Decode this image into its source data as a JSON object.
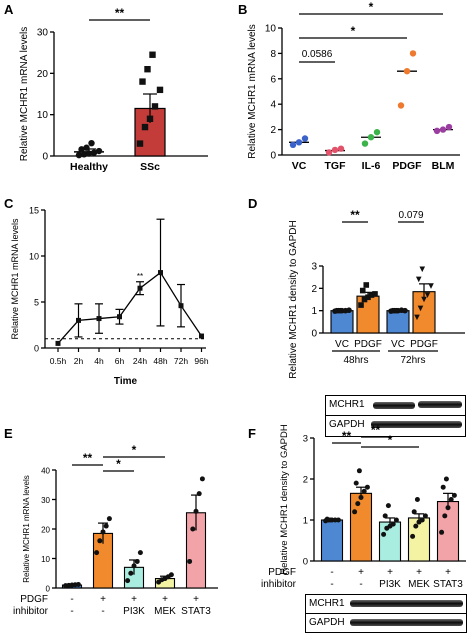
{
  "panels": {
    "A": {
      "label": "A"
    },
    "B": {
      "label": "B"
    },
    "C": {
      "label": "C"
    },
    "D": {
      "label": "D"
    },
    "E": {
      "label": "E"
    },
    "F": {
      "label": "F"
    }
  },
  "blots": {
    "D": {
      "rows": [
        "MCHR1",
        "GAPDH"
      ]
    },
    "F": {
      "rows": [
        "MCHR1",
        "GAPDH"
      ]
    }
  },
  "chart_data": [
    {
      "id": "A",
      "type": "bar",
      "ylabel": "Relative MCHR1 mRNA levels",
      "ylim": [
        0,
        30
      ],
      "yticks": [
        0,
        10,
        20,
        30
      ],
      "categories": [
        "Healthy",
        "SSc"
      ],
      "values": [
        1.0,
        11.5
      ],
      "errors": [
        0.7,
        3.5
      ],
      "points": [
        [
          0.2,
          0.4,
          0.6,
          0.8,
          1.2,
          1.6,
          2.0,
          3.1
        ],
        [
          3.0,
          7.0,
          9.0,
          12.0,
          16.0,
          18.0,
          21.0,
          24.5
        ]
      ],
      "colors": [
        "#ffffff",
        "#c43c39"
      ],
      "marker": [
        "circle",
        "square"
      ],
      "significance": [
        {
          "from": 0,
          "to": 1,
          "text": "**"
        }
      ]
    },
    {
      "id": "B",
      "type": "scatter",
      "ylabel": "Relative MCHR1 mRNA levels",
      "ylim": [
        0,
        10
      ],
      "yticks": [
        0,
        2,
        4,
        6,
        8,
        10
      ],
      "categories": [
        "VC",
        "TGF",
        "IL-6",
        "PDGF",
        "BLM"
      ],
      "points": [
        [
          0.8,
          1.0,
          1.3
        ],
        [
          0.2,
          0.4,
          0.5
        ],
        [
          0.9,
          1.4,
          1.8
        ],
        [
          3.9,
          6.6,
          8.0
        ],
        [
          1.9,
          2.0,
          2.2
        ]
      ],
      "means": [
        1.0,
        0.35,
        1.4,
        6.6,
        2.0
      ],
      "colors": [
        "#3a62c9",
        "#e0536a",
        "#3bb24a",
        "#ee7a2f",
        "#9a3ea0"
      ],
      "significance": [
        {
          "from": 0,
          "to": 4,
          "text": "*"
        },
        {
          "from": 0,
          "to": 3,
          "text": "*"
        },
        {
          "from": 0,
          "to": 1,
          "text": "0.0586"
        }
      ]
    },
    {
      "id": "C",
      "type": "line",
      "ylabel": "Relative MCHR1 mRNA levels",
      "xlabel": "Time",
      "ylim": [
        0,
        15
      ],
      "yticks": [
        0,
        5,
        10,
        15
      ],
      "categories": [
        "0.5h",
        "2h",
        "4h",
        "6h",
        "24h",
        "48h",
        "72h",
        "96h"
      ],
      "values": [
        0.5,
        3.0,
        3.2,
        3.4,
        6.5,
        8.2,
        4.6,
        1.3
      ],
      "errors": [
        0,
        1.8,
        1.6,
        0.8,
        0.7,
        5.8,
        2.3,
        0
      ],
      "baseline": 1,
      "annotation": {
        "index": 4,
        "text": "**"
      }
    },
    {
      "id": "D",
      "type": "bar",
      "ylabel": "Relative MCHR1 density to GAPDH",
      "ylim": [
        0,
        3
      ],
      "yticks": [
        0,
        1,
        2,
        3
      ],
      "categories": [
        "VC",
        "PDGF",
        "VC",
        "PDGF"
      ],
      "groups": [
        "48hrs",
        "72hrs"
      ],
      "values": [
        1.0,
        1.65,
        1.0,
        1.85
      ],
      "errors": [
        0.02,
        0.17,
        0.02,
        0.35
      ],
      "points": [
        [
          0.98,
          1.0,
          1.0,
          1.0,
          1.02,
          1.0,
          1.0
        ],
        [
          1.25,
          1.5,
          1.6,
          1.7,
          1.75,
          1.9,
          2.15
        ],
        [
          0.98,
          1.0,
          1.0,
          1.02,
          1.0,
          1.0,
          1.0
        ],
        [
          0.7,
          1.1,
          1.5,
          1.7,
          2.1,
          2.4,
          2.85
        ]
      ],
      "colors": [
        "#4f88d2",
        "#f08a2c",
        "#4f88d2",
        "#f08a2c"
      ],
      "marker": [
        "circle",
        "square",
        "circle",
        "triangle-down"
      ],
      "significance": [
        {
          "from": 0,
          "to": 1,
          "text": "**"
        },
        {
          "from": 2,
          "to": 3,
          "text": "0.079"
        }
      ]
    },
    {
      "id": "E",
      "type": "bar",
      "ylabel": "Relative MCHR1 mRNA levels",
      "ylim": [
        0,
        40
      ],
      "yticks": [
        0,
        10,
        20,
        30,
        40
      ],
      "rows": [
        {
          "label": "PDGF",
          "values": [
            "-",
            "+",
            "+",
            "+",
            "+"
          ]
        },
        {
          "label": "inhibitor",
          "values": [
            "-",
            "-",
            "PI3K",
            "MEK",
            "STAT3"
          ]
        }
      ],
      "values": [
        1.0,
        18.5,
        7.0,
        3.2,
        25.5
      ],
      "errors": [
        0.3,
        3.5,
        2.5,
        0.8,
        6.0
      ],
      "points": [
        [
          0.8,
          0.9,
          1.0,
          1.1,
          1.2
        ],
        [
          12.0,
          16.0,
          19.0,
          21.0,
          23.5
        ],
        [
          2.5,
          5.0,
          7.5,
          9.0,
          12.0
        ],
        [
          2.0,
          2.8,
          3.2,
          3.8,
          4.5
        ],
        [
          9.0,
          20.0,
          26.0,
          32.0,
          37.0
        ]
      ],
      "colors": [
        "#4f88d2",
        "#f08a2c",
        "#a9ece0",
        "#f3f3a3",
        "#f2a3a8"
      ],
      "significance": [
        {
          "from": 0,
          "to": 1,
          "text": "**"
        },
        {
          "from": 1,
          "to": 2,
          "text": "*"
        },
        {
          "from": 1,
          "to": 3,
          "text": "*"
        }
      ]
    },
    {
      "id": "F",
      "type": "bar",
      "ylabel": "Relative MCHR1 density to GAPDH",
      "ylim": [
        0,
        3
      ],
      "yticks": [
        0,
        1,
        2,
        3
      ],
      "rows": [
        {
          "label": "PDGF",
          "values": [
            "-",
            "+",
            "+",
            "+",
            "+"
          ]
        },
        {
          "label": "inhibitor",
          "values": [
            "-",
            "-",
            "PI3K",
            "MEK",
            "STAT3"
          ]
        }
      ],
      "values": [
        1.0,
        1.65,
        0.95,
        1.05,
        1.45
      ],
      "errors": [
        0.02,
        0.15,
        0.1,
        0.1,
        0.2
      ],
      "points": [
        [
          0.98,
          1.0,
          1.0,
          1.0,
          1.0,
          1.02,
          1.0
        ],
        [
          1.2,
          1.4,
          1.55,
          1.7,
          1.8,
          1.9,
          2.2
        ],
        [
          0.65,
          0.8,
          0.85,
          0.9,
          1.0,
          1.1,
          1.35
        ],
        [
          0.6,
          0.85,
          0.95,
          1.0,
          1.1,
          1.2,
          1.5
        ],
        [
          0.7,
          1.1,
          1.3,
          1.5,
          1.6,
          1.8,
          2.0
        ]
      ],
      "colors": [
        "#4f88d2",
        "#f08a2c",
        "#a9ece0",
        "#f3f3a3",
        "#f2a3a8"
      ],
      "significance": [
        {
          "from": 0,
          "to": 1,
          "text": "**"
        },
        {
          "from": 1,
          "to": 2,
          "text": "**"
        },
        {
          "from": 1,
          "to": 3,
          "text": "*"
        }
      ]
    }
  ]
}
